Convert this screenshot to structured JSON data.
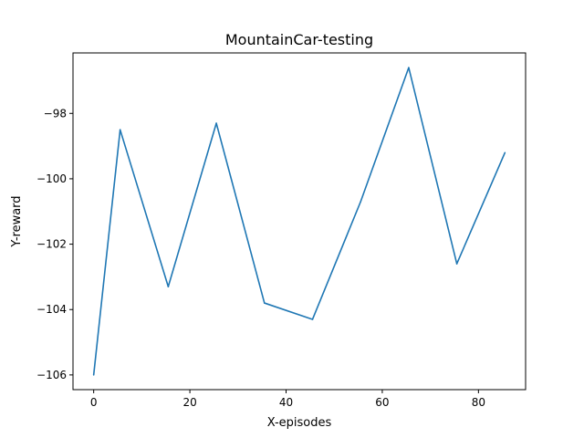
{
  "chart_data": {
    "type": "line",
    "title": "MountainCar-testing",
    "xlabel": "X-episodes",
    "ylabel": "Y-reward",
    "xlim": [
      -4.3,
      89.8
    ],
    "ylim": [
      -106.45,
      -96.15
    ],
    "xticks": [
      0,
      20,
      40,
      60,
      80
    ],
    "xtick_labels": [
      "0",
      "20",
      "40",
      "60",
      "80"
    ],
    "yticks": [
      -106,
      -104,
      -102,
      -100,
      -98
    ],
    "ytick_labels": [
      "−106",
      "−104",
      "−102",
      "−100",
      "−98"
    ],
    "grid": false,
    "series": [
      {
        "color": "#1f77b4",
        "x": [
          0,
          5.5,
          15.5,
          25.5,
          35.5,
          45.5,
          55.5,
          65.5,
          75.5,
          85.5
        ],
        "y": [
          -106.0,
          -98.5,
          -103.3,
          -98.3,
          -103.8,
          -104.3,
          -100.7,
          -96.6,
          -102.6,
          -99.2
        ]
      }
    ]
  }
}
